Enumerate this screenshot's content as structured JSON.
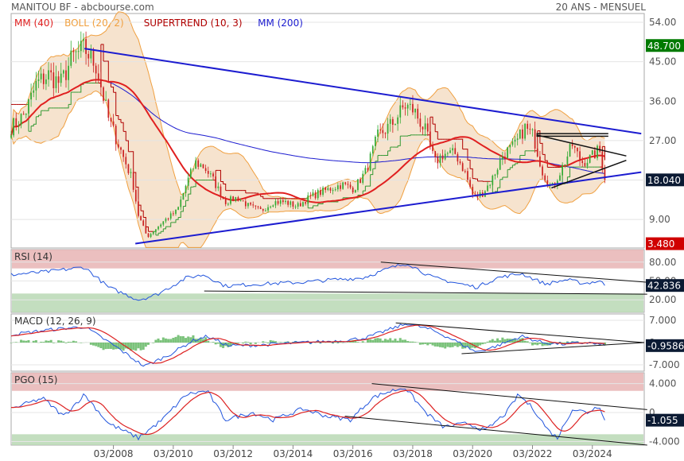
{
  "header": {
    "title": "MANITOU BF - abcbourse.com",
    "period": "20 ANS - MENSUEL"
  },
  "colors": {
    "mm40": "#e02020",
    "boll": "#f0a040",
    "boll_fill": "#f3d9bd",
    "supertrend": "#b00000",
    "mm200": "#1c1cd0",
    "candle_up": "#33aa33",
    "candle_down": "#cc2222",
    "trendline": "#1c1cd0",
    "price_tag_green": "#007a00",
    "price_tag_red": "#d00000",
    "last_tag": "#0b1a33",
    "zone_high": "#e8b4b4",
    "zone_low": "#b8d8b4"
  },
  "chart_data": [
    {
      "type": "candlestick",
      "panel": "price",
      "title": "",
      "legend": [
        {
          "name": "MM (40)",
          "color": "#e02020"
        },
        {
          "name": "BOLL (20, 2)",
          "color": "#f0a040"
        },
        {
          "name": "SUPERTREND (10, 3)",
          "color": "#b00000"
        },
        {
          "name": "MM (200)",
          "color": "#1c1cd0"
        }
      ],
      "x_ticks": [
        "03/2008",
        "03/2010",
        "03/2012",
        "03/2014",
        "03/2016",
        "03/2018",
        "03/2020",
        "03/2022",
        "03/2024"
      ],
      "y_ticks": [
        "54.00",
        "45.00",
        "36.00",
        "27.00",
        "18.00",
        "9.00"
      ],
      "y_tick_values": [
        54,
        45,
        36,
        27,
        18,
        9
      ],
      "ylim": [
        2.5,
        56
      ],
      "price_tags": {
        "high": "48.700",
        "last": "18.040",
        "low": "3.480"
      },
      "price_tag_values": {
        "high": 48.7,
        "last": 18.04,
        "low": 3.48
      },
      "anchors": [
        [
          2004.75,
          30
        ],
        [
          2005.2,
          33
        ],
        [
          2005.6,
          40
        ],
        [
          2006.0,
          42
        ],
        [
          2006.4,
          40
        ],
        [
          2006.8,
          46
        ],
        [
          2007.2,
          48
        ],
        [
          2007.6,
          44
        ],
        [
          2008.0,
          32
        ],
        [
          2008.4,
          25
        ],
        [
          2008.8,
          18
        ],
        [
          2009.0,
          10
        ],
        [
          2009.3,
          5
        ],
        [
          2009.6,
          7
        ],
        [
          2009.9,
          9
        ],
        [
          2010.3,
          11
        ],
        [
          2010.6,
          17
        ],
        [
          2010.9,
          22
        ],
        [
          2011.2,
          21
        ],
        [
          2011.5,
          18
        ],
        [
          2011.9,
          13
        ],
        [
          2012.3,
          14
        ],
        [
          2012.7,
          12
        ],
        [
          2013.1,
          11
        ],
        [
          2013.5,
          13
        ],
        [
          2013.9,
          13
        ],
        [
          2014.3,
          12
        ],
        [
          2014.7,
          14
        ],
        [
          2015.0,
          15
        ],
        [
          2015.4,
          16
        ],
        [
          2015.8,
          17
        ],
        [
          2016.2,
          16
        ],
        [
          2016.6,
          20
        ],
        [
          2017.0,
          28
        ],
        [
          2017.5,
          31
        ],
        [
          2017.9,
          35
        ],
        [
          2018.2,
          34
        ],
        [
          2018.6,
          29
        ],
        [
          2018.9,
          22
        ],
        [
          2019.2,
          24
        ],
        [
          2019.6,
          24
        ],
        [
          2019.9,
          20
        ],
        [
          2020.2,
          14
        ],
        [
          2020.5,
          15
        ],
        [
          2020.8,
          18
        ],
        [
          2021.2,
          24
        ],
        [
          2021.6,
          26
        ],
        [
          2021.9,
          30
        ],
        [
          2022.2,
          28
        ],
        [
          2022.5,
          20
        ],
        [
          2022.8,
          16
        ],
        [
          2023.1,
          20
        ],
        [
          2023.5,
          26
        ],
        [
          2023.8,
          22
        ],
        [
          2024.1,
          23
        ],
        [
          2024.4,
          25
        ],
        [
          2024.6,
          18
        ]
      ],
      "trendlines": [
        {
          "from": [
            2007.2,
            48
          ],
          "to": [
            2025.8,
            28.6
          ]
        },
        {
          "from": [
            2008.9,
            3.5
          ],
          "to": [
            2025.8,
            19.8
          ]
        },
        {
          "from": [
            2022.3,
            28.6
          ],
          "to": [
            2024.7,
            28.6
          ]
        },
        {
          "from": [
            2022.3,
            28.0
          ],
          "to": [
            2024.7,
            28.0
          ]
        },
        {
          "from": [
            2022.3,
            28.3
          ],
          "to": [
            2025.3,
            23.5
          ]
        },
        {
          "from": [
            2022.8,
            16.2
          ],
          "to": [
            2025.3,
            22.5
          ]
        }
      ]
    },
    {
      "type": "line",
      "panel": "rsi",
      "label": "RSI (14)",
      "ylim": [
        0,
        100
      ],
      "y_ticks": [
        "80.00",
        "50.00",
        "20.00"
      ],
      "y_tick_values": [
        80,
        50,
        20
      ],
      "last_tag": "42.836",
      "last_value": 42.836,
      "zones": {
        "high": [
          70,
          100
        ],
        "low": [
          0,
          30
        ]
      },
      "anchors": [
        [
          2004.75,
          60
        ],
        [
          2006.0,
          65
        ],
        [
          2007.2,
          72
        ],
        [
          2008.0,
          40
        ],
        [
          2009.0,
          20
        ],
        [
          2009.6,
          28
        ],
        [
          2010.6,
          55
        ],
        [
          2011.2,
          60
        ],
        [
          2011.9,
          42
        ],
        [
          2013.0,
          45
        ],
        [
          2014.5,
          48
        ],
        [
          2015.5,
          52
        ],
        [
          2016.5,
          55
        ],
        [
          2017.5,
          72
        ],
        [
          2018.0,
          78
        ],
        [
          2018.8,
          56
        ],
        [
          2019.5,
          48
        ],
        [
          2020.3,
          40
        ],
        [
          2021.0,
          55
        ],
        [
          2021.8,
          62
        ],
        [
          2022.6,
          45
        ],
        [
          2023.3,
          52
        ],
        [
          2023.9,
          46
        ],
        [
          2024.4,
          50
        ],
        [
          2024.6,
          42.836
        ]
      ],
      "trendlines": [
        {
          "from": [
            2017.1,
            80
          ],
          "to": [
            2026.0,
            48
          ]
        },
        {
          "from": [
            2011.2,
            34
          ],
          "to": [
            2026.0,
            29
          ]
        }
      ]
    },
    {
      "type": "line",
      "panel": "macd",
      "label": "MACD (12, 26, 9)",
      "ylim": [
        -9,
        9
      ],
      "y_ticks": [
        "7.000",
        "0",
        "-7.000"
      ],
      "y_tick_values": [
        7,
        0,
        -7
      ],
      "last_tag": "-0.9586",
      "last_value": -0.9586,
      "anchors": [
        [
          2004.75,
          2.5
        ],
        [
          2006.0,
          4.0
        ],
        [
          2007.2,
          5.0
        ],
        [
          2008.2,
          -1.0
        ],
        [
          2009.2,
          -7.5
        ],
        [
          2010.0,
          -4.0
        ],
        [
          2010.8,
          0.5
        ],
        [
          2011.3,
          2.0
        ],
        [
          2012.0,
          -1.0
        ],
        [
          2013.0,
          -0.8
        ],
        [
          2014.5,
          0.0
        ],
        [
          2015.8,
          0.6
        ],
        [
          2016.6,
          1.5
        ],
        [
          2017.5,
          4.5
        ],
        [
          2018.0,
          6.0
        ],
        [
          2018.8,
          4.0
        ],
        [
          2019.5,
          1.0
        ],
        [
          2020.3,
          -3.0
        ],
        [
          2021.0,
          -1.0
        ],
        [
          2021.8,
          2.0
        ],
        [
          2022.5,
          0.0
        ],
        [
          2023.2,
          -0.5
        ],
        [
          2024.0,
          0.0
        ],
        [
          2024.6,
          -0.9586
        ]
      ],
      "trendlines": [
        {
          "from": [
            2017.6,
            6.2
          ],
          "to": [
            2025.9,
            0
          ]
        },
        {
          "from": [
            2019.8,
            -3.5
          ],
          "to": [
            2025.9,
            0
          ]
        }
      ]
    },
    {
      "type": "line",
      "panel": "pgo",
      "label": "PGO (15)",
      "ylim": [
        -4.5,
        5.5
      ],
      "y_ticks": [
        "4.000",
        "0",
        "-4.000"
      ],
      "y_tick_values": [
        4,
        0,
        -4
      ],
      "last_tag": "-1.055",
      "last_value": -1.055,
      "zones": {
        "high": [
          3,
          5.5
        ],
        "low": [
          -4.5,
          -3
        ]
      },
      "anchors": [
        [
          2004.75,
          0.5
        ],
        [
          2005.8,
          2.0
        ],
        [
          2006.5,
          -0.5
        ],
        [
          2007.2,
          2.5
        ],
        [
          2008.0,
          -1.5
        ],
        [
          2009.0,
          -3.5
        ],
        [
          2009.8,
          -1.0
        ],
        [
          2010.6,
          2.5
        ],
        [
          2011.3,
          3.0
        ],
        [
          2011.9,
          -1.0
        ],
        [
          2012.8,
          0.0
        ],
        [
          2013.5,
          -1.0
        ],
        [
          2014.5,
          0.5
        ],
        [
          2015.3,
          -0.5
        ],
        [
          2016.1,
          -1.0
        ],
        [
          2016.8,
          2.0
        ],
        [
          2017.3,
          2.8
        ],
        [
          2017.9,
          3.5
        ],
        [
          2018.6,
          0.0
        ],
        [
          2019.2,
          -2.0
        ],
        [
          2020.0,
          -1.5
        ],
        [
          2020.6,
          -2.5
        ],
        [
          2021.3,
          0.0
        ],
        [
          2021.7,
          2.5
        ],
        [
          2022.2,
          0.5
        ],
        [
          2022.7,
          -2.5
        ],
        [
          2023.0,
          -3.5
        ],
        [
          2023.5,
          0.5
        ],
        [
          2024.0,
          0.0
        ],
        [
          2024.4,
          1.0
        ],
        [
          2024.6,
          -1.055
        ]
      ],
      "trendlines": [
        {
          "from": [
            2016.8,
            4.0
          ],
          "to": [
            2026.0,
            0.4
          ]
        },
        {
          "from": [
            2015.9,
            -0.5
          ],
          "to": [
            2026.0,
            -4.5
          ]
        }
      ]
    }
  ]
}
